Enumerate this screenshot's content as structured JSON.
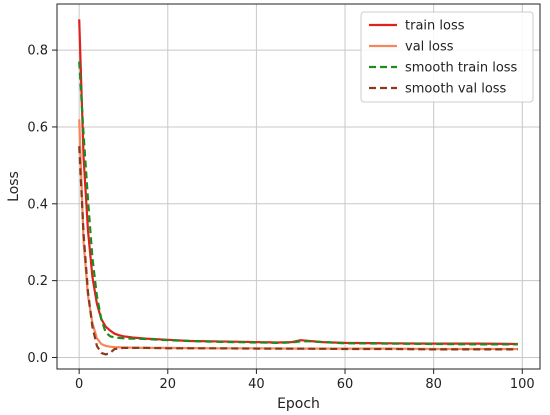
{
  "chart_data": {
    "type": "line",
    "title": "",
    "xlabel": "Epoch",
    "ylabel": "Loss",
    "xlim": [
      -5,
      104
    ],
    "ylim": [
      -0.03,
      0.92
    ],
    "xticks": [
      0,
      20,
      40,
      60,
      80,
      100
    ],
    "yticks": [
      0.0,
      0.2,
      0.4,
      0.6,
      0.8
    ],
    "xtick_labels": [
      "0",
      "20",
      "40",
      "60",
      "80",
      "100"
    ],
    "ytick_labels": [
      "0.0",
      "0.2",
      "0.4",
      "0.6",
      "0.8"
    ],
    "grid": true,
    "legend_position": "top-right",
    "series": [
      {
        "name": "train loss",
        "color": "#e0201b",
        "dash": "solid",
        "x": [
          0,
          1,
          2,
          3,
          4,
          5,
          6,
          7,
          8,
          9,
          10,
          12,
          15,
          20,
          25,
          30,
          35,
          40,
          45,
          48,
          50,
          52,
          55,
          60,
          70,
          80,
          90,
          99
        ],
        "y": [
          0.88,
          0.52,
          0.33,
          0.21,
          0.14,
          0.1,
          0.08,
          0.07,
          0.062,
          0.058,
          0.055,
          0.052,
          0.049,
          0.046,
          0.043,
          0.042,
          0.041,
          0.04,
          0.039,
          0.04,
          0.045,
          0.043,
          0.04,
          0.038,
          0.037,
          0.036,
          0.036,
          0.035
        ]
      },
      {
        "name": "val loss",
        "color": "#f5875a",
        "dash": "solid",
        "x": [
          0,
          1,
          2,
          3,
          4,
          5,
          6,
          7,
          8,
          10,
          15,
          20,
          30,
          40,
          50,
          60,
          70,
          80,
          90,
          99
        ],
        "y": [
          0.62,
          0.3,
          0.16,
          0.09,
          0.05,
          0.035,
          0.03,
          0.028,
          0.027,
          0.026,
          0.025,
          0.025,
          0.024,
          0.024,
          0.023,
          0.023,
          0.023,
          0.022,
          0.022,
          0.022
        ]
      },
      {
        "name": "smooth train loss",
        "color": "#1f8a1f",
        "dash": "dashed",
        "x": [
          0,
          1,
          2,
          3,
          4,
          5,
          6,
          7,
          8,
          9,
          10,
          12,
          15,
          20,
          25,
          30,
          35,
          40,
          45,
          48,
          50,
          52,
          55,
          60,
          70,
          80,
          90,
          99
        ],
        "y": [
          0.77,
          0.58,
          0.41,
          0.26,
          0.16,
          0.1,
          0.065,
          0.055,
          0.052,
          0.051,
          0.05,
          0.049,
          0.048,
          0.045,
          0.043,
          0.041,
          0.04,
          0.039,
          0.038,
          0.039,
          0.042,
          0.042,
          0.04,
          0.037,
          0.036,
          0.035,
          0.034,
          0.034
        ]
      },
      {
        "name": "smooth val loss",
        "color": "#8a3a1a",
        "dash": "dashed",
        "x": [
          0,
          1,
          2,
          3,
          4,
          5,
          6,
          7,
          8,
          10,
          15,
          20,
          30,
          40,
          50,
          60,
          70,
          80,
          90,
          99
        ],
        "y": [
          0.55,
          0.32,
          0.17,
          0.08,
          0.03,
          0.012,
          0.008,
          0.012,
          0.022,
          0.025,
          0.025,
          0.024,
          0.024,
          0.023,
          0.023,
          0.022,
          0.022,
          0.021,
          0.021,
          0.021
        ]
      }
    ]
  }
}
